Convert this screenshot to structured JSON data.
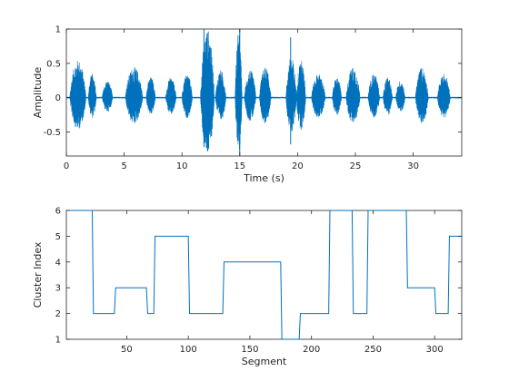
{
  "colors": {
    "series": "#0072BD",
    "axis": "#262626",
    "background": "#ffffff"
  },
  "chart_data": [
    {
      "type": "line",
      "title": "",
      "xlabel": "Time (s)",
      "ylabel": "Amplitude",
      "xlim": [
        0,
        34.2
      ],
      "ylim": [
        -0.85,
        1
      ],
      "xticks": [
        0,
        5,
        10,
        15,
        20,
        25,
        30
      ],
      "yticks": [
        -0.5,
        0,
        0.5,
        1
      ],
      "xtick_labels": [
        "0",
        "5",
        "10",
        "15",
        "20",
        "25",
        "30"
      ],
      "ytick_labels": [
        "-0.5",
        "0",
        "0.5",
        "1"
      ],
      "grid": false,
      "series": [
        {
          "description_of_envelope": "speech waveform; bursts given as [start_s, end_s, peak_amplitude]",
          "bursts": [
            [
              0.3,
              1.7,
              0.55
            ],
            [
              1.9,
              2.6,
              0.35
            ],
            [
              3.1,
              4.0,
              0.25
            ],
            [
              5.1,
              6.6,
              0.45
            ],
            [
              6.9,
              7.7,
              0.3
            ],
            [
              8.6,
              9.5,
              0.3
            ],
            [
              10.0,
              10.9,
              0.35
            ],
            [
              11.6,
              12.8,
              1.0
            ],
            [
              12.9,
              13.8,
              0.4
            ],
            [
              14.6,
              15.2,
              0.95
            ],
            [
              15.4,
              16.4,
              0.4
            ],
            [
              16.7,
              17.7,
              0.45
            ],
            [
              19.0,
              19.9,
              0.6
            ],
            [
              19.9,
              20.7,
              0.55
            ],
            [
              21.2,
              22.4,
              0.35
            ],
            [
              23.0,
              23.8,
              0.3
            ],
            [
              24.2,
              25.4,
              0.45
            ],
            [
              26.1,
              27.1,
              0.35
            ],
            [
              27.4,
              28.2,
              0.3
            ],
            [
              28.5,
              29.3,
              0.25
            ],
            [
              30.2,
              31.3,
              0.45
            ],
            [
              32.1,
              33.2,
              0.35
            ]
          ],
          "spikes": [
            [
              11.9,
              1.0,
              -0.72
            ],
            [
              15.0,
              1.0,
              -0.85
            ],
            [
              19.4,
              0.88,
              -0.68
            ]
          ]
        }
      ]
    },
    {
      "type": "line",
      "title": "",
      "xlabel": "Segment",
      "ylabel": "Cluster Index",
      "xlim": [
        1,
        322
      ],
      "ylim": [
        1,
        6
      ],
      "xticks": [
        50,
        100,
        150,
        200,
        250,
        300
      ],
      "yticks": [
        1,
        2,
        3,
        4,
        5,
        6
      ],
      "xtick_labels": [
        "50",
        "100",
        "150",
        "200",
        "250",
        "300"
      ],
      "ytick_labels": [
        "1",
        "2",
        "3",
        "4",
        "5",
        "6"
      ],
      "grid": false,
      "series": [
        {
          "steps": [
            [
              1,
              6
            ],
            [
              22,
              6
            ],
            [
              23,
              2
            ],
            [
              40,
              2
            ],
            [
              41,
              3
            ],
            [
              66,
              3
            ],
            [
              67,
              2
            ],
            [
              72,
              2
            ],
            [
              73,
              5
            ],
            [
              100,
              5
            ],
            [
              101,
              2
            ],
            [
              128,
              2
            ],
            [
              129,
              4
            ],
            [
              175,
              4
            ],
            [
              176,
              1
            ],
            [
              190,
              1
            ],
            [
              191,
              2
            ],
            [
              214,
              2
            ],
            [
              215,
              6
            ],
            [
              233,
              6
            ],
            [
              234,
              2
            ],
            [
              245,
              2
            ],
            [
              246,
              6
            ],
            [
              249,
              6
            ],
            [
              250,
              6
            ],
            [
              277,
              6
            ],
            [
              278,
              3
            ],
            [
              300,
              3
            ],
            [
              301,
              2
            ],
            [
              311,
              2
            ],
            [
              312,
              5
            ],
            [
              322,
              5
            ]
          ]
        }
      ]
    }
  ]
}
